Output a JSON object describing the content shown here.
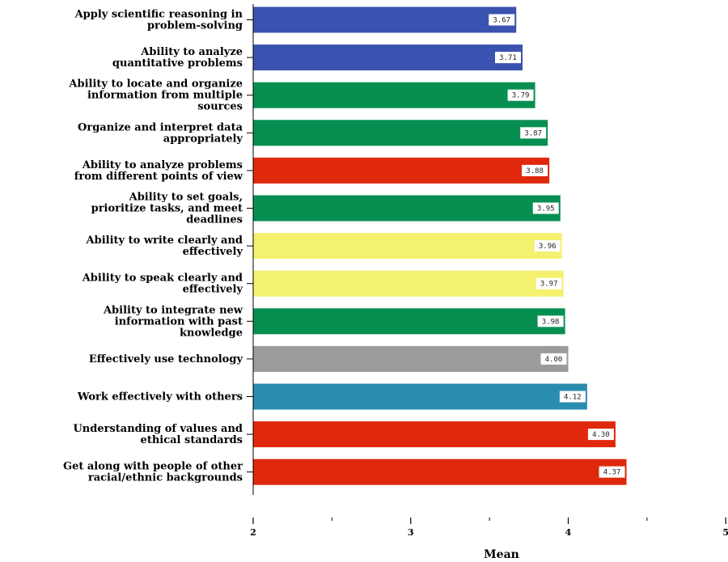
{
  "chart_data": {
    "type": "bar",
    "orientation": "horizontal",
    "xlabel": "Mean",
    "xlim": [
      2,
      5
    ],
    "major_ticks": [
      2,
      3,
      4,
      5
    ],
    "minor_ticks": [
      2.5,
      3.5,
      4.5
    ],
    "grid": false,
    "categories": [
      "Apply scientific reasoning in\nproblem-solving",
      "Ability to analyze\nquantitative problems",
      "Ability to locate and organize\ninformation from multiple\nsources",
      "Organize and interpret data\nappropriately",
      "Ability to analyze problems\nfrom different points of view",
      "Ability to set goals,\nprioritize tasks, and meet\ndeadlines",
      "Ability to write clearly and\neffectively",
      "Ability to speak clearly and\neffectively",
      "Ability to integrate new\ninformation with past\nknowledge",
      "Effectively use technology",
      "Work effectively with others",
      "Understanding of values and\nethical standards",
      "Get along with people of other\nracial/ethnic backgrounds"
    ],
    "values": [
      3.67,
      3.71,
      3.79,
      3.87,
      3.88,
      3.95,
      3.96,
      3.97,
      3.98,
      4.0,
      4.12,
      4.3,
      4.37
    ],
    "value_labels": [
      "3.67",
      "3.71",
      "3.79",
      "3.87",
      "3.88",
      "3.95",
      "3.96",
      "3.97",
      "3.98",
      "4.00",
      "4.12",
      "4.30",
      "4.37"
    ],
    "colors": [
      "#3a53b0",
      "#3a53b0",
      "#078f52",
      "#078f52",
      "#e0290c",
      "#078f52",
      "#f3f16e",
      "#f3f16e",
      "#078f52",
      "#9b9b9b",
      "#2a8db0",
      "#e0290c",
      "#e0290c"
    ]
  }
}
